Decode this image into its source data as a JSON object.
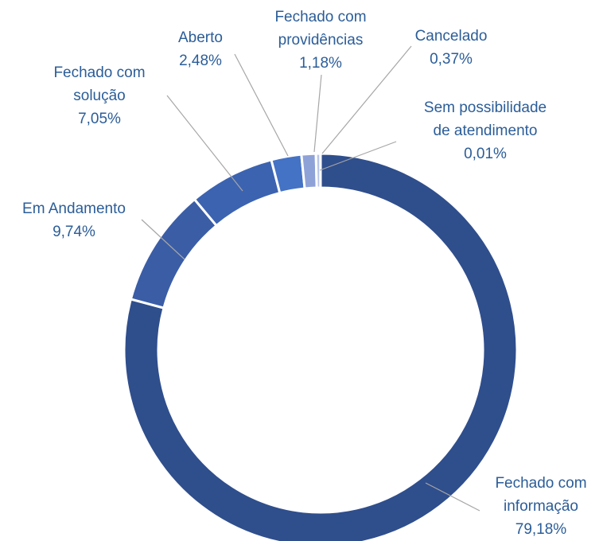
{
  "chart_data": {
    "type": "donut",
    "categories": [
      "Fechado com informação",
      "Em Andamento",
      "Fechado com solução",
      "Aberto",
      "Fechado com providências",
      "Cancelado",
      "Sem possibilidade de atendimento"
    ],
    "values": [
      79.18,
      9.74,
      7.05,
      2.48,
      1.18,
      0.37,
      0.01
    ],
    "value_labels": [
      "79,18%",
      "9,74%",
      "7,05%",
      "2,48%",
      "1,18%",
      "0,37%",
      "0,01%"
    ],
    "colors": [
      "#2f4e8c",
      "#3a5da6",
      "#3c63b0",
      "#4472c4",
      "#8fa2d8",
      "#b9c5e8",
      "#dde3f3"
    ]
  }
}
